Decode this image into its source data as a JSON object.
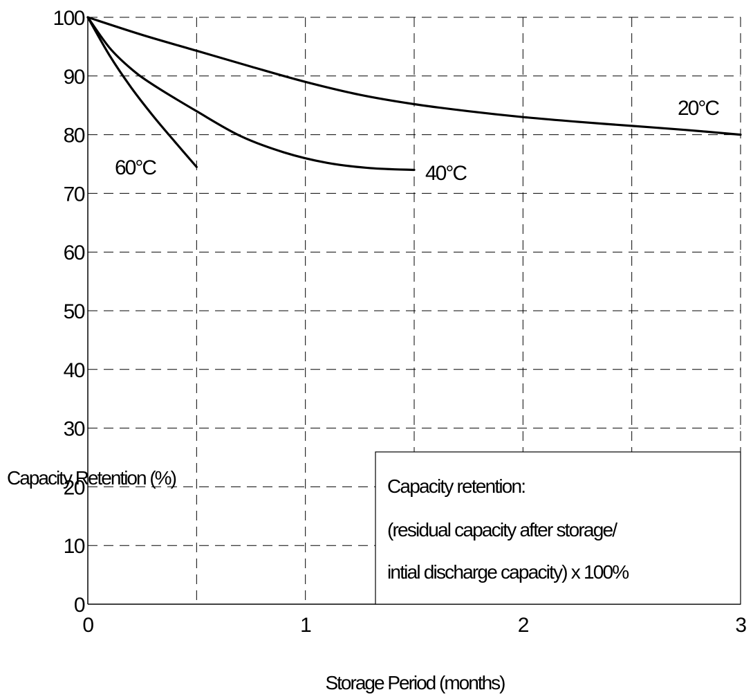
{
  "chart_data": {
    "type": "line",
    "xlabel": "Storage Period (months)",
    "ylabel": "Capacity Retention (%)",
    "xlim": [
      0,
      3
    ],
    "ylim": [
      0,
      100
    ],
    "x_ticks": [
      0,
      0.5,
      1,
      1.5,
      2,
      2.5,
      3
    ],
    "x_tick_labels": [
      "0",
      "1",
      "2",
      "3"
    ],
    "x_tick_label_values": [
      0,
      1,
      2,
      3
    ],
    "y_ticks": [
      0,
      10,
      20,
      30,
      40,
      50,
      60,
      70,
      80,
      90,
      100
    ],
    "y_tick_labels": [
      "0",
      "10",
      "20",
      "30",
      "40",
      "50",
      "60",
      "70",
      "80",
      "90",
      "100"
    ],
    "grid": true,
    "series": [
      {
        "name": "20°C",
        "x": [
          0,
          0.25,
          0.5,
          0.75,
          1.0,
          1.25,
          1.5,
          1.75,
          2.0,
          2.25,
          2.5,
          2.75,
          3.0
        ],
        "y": [
          100,
          97,
          94.3,
          91.6,
          89,
          86.8,
          85.2,
          84,
          83,
          82.2,
          81.5,
          80.8,
          80
        ]
      },
      {
        "name": "40°C",
        "x": [
          0,
          0.1,
          0.2,
          0.3,
          0.5,
          0.7,
          0.9,
          1.1,
          1.3,
          1.5
        ],
        "y": [
          100,
          94.8,
          91.2,
          88.5,
          84,
          79.8,
          77,
          75.2,
          74.3,
          74
        ]
      },
      {
        "name": "60°C",
        "x": [
          0,
          0.1,
          0.2,
          0.3,
          0.4,
          0.5
        ],
        "y": [
          100,
          93.5,
          88,
          83.2,
          78.8,
          74.5
        ]
      }
    ],
    "annotations": [
      "Capacity retention:",
      "(residual capacity after storage/",
      "intial discharge capacity) x 100%"
    ],
    "legend_placement": "bottom-right"
  }
}
